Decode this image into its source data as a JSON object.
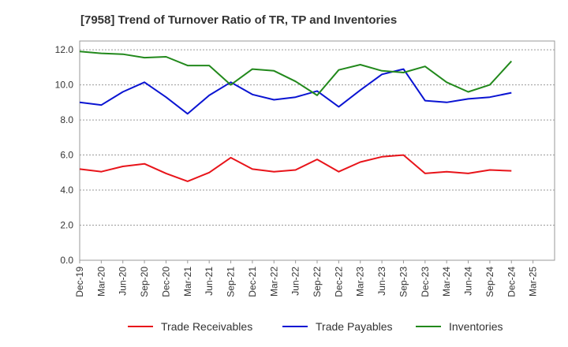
{
  "chart_data": {
    "type": "line",
    "title": "[7958]  Trend of Turnover Ratio of TR, TP and Inventories",
    "xlabel": "",
    "ylabel": "",
    "ylim": [
      0,
      12.5
    ],
    "yticks": [
      "0.0",
      "2.0",
      "4.0",
      "6.0",
      "8.0",
      "10.0",
      "12.0"
    ],
    "yticks_values": [
      0,
      2,
      4,
      6,
      8,
      10,
      12
    ],
    "grid": true,
    "legend_position": "bottom",
    "x": [
      "Dec-19",
      "Mar-20",
      "Jun-20",
      "Sep-20",
      "Dec-20",
      "Mar-21",
      "Jun-21",
      "Sep-21",
      "Dec-21",
      "Mar-22",
      "Jun-22",
      "Sep-22",
      "Dec-22",
      "Mar-23",
      "Jun-23",
      "Sep-23",
      "Dec-23",
      "Mar-24",
      "Jun-24",
      "Sep-24",
      "Dec-24",
      "Mar-25"
    ],
    "series": [
      {
        "name": "Trade Receivables",
        "color": "#e8141a",
        "values": [
          5.2,
          5.05,
          5.35,
          5.5,
          4.95,
          4.5,
          5.0,
          5.85,
          5.2,
          5.05,
          5.15,
          5.75,
          5.05,
          5.6,
          5.9,
          6.0,
          4.95,
          5.05,
          4.95,
          5.15,
          5.1,
          null
        ]
      },
      {
        "name": "Trade Payables",
        "color": "#0a14d2",
        "values": [
          9.0,
          8.85,
          9.6,
          10.15,
          9.3,
          8.35,
          9.4,
          10.15,
          9.45,
          9.15,
          9.3,
          9.65,
          8.75,
          9.7,
          10.6,
          10.9,
          9.1,
          9.0,
          9.2,
          9.3,
          9.55,
          null
        ]
      },
      {
        "name": "Inventories",
        "color": "#22891c",
        "values": [
          11.9,
          11.8,
          11.75,
          11.55,
          11.6,
          11.1,
          11.1,
          10.0,
          10.9,
          10.8,
          10.2,
          9.4,
          10.85,
          11.15,
          10.8,
          10.7,
          11.05,
          10.15,
          9.6,
          10.0,
          11.35,
          null
        ]
      }
    ]
  }
}
